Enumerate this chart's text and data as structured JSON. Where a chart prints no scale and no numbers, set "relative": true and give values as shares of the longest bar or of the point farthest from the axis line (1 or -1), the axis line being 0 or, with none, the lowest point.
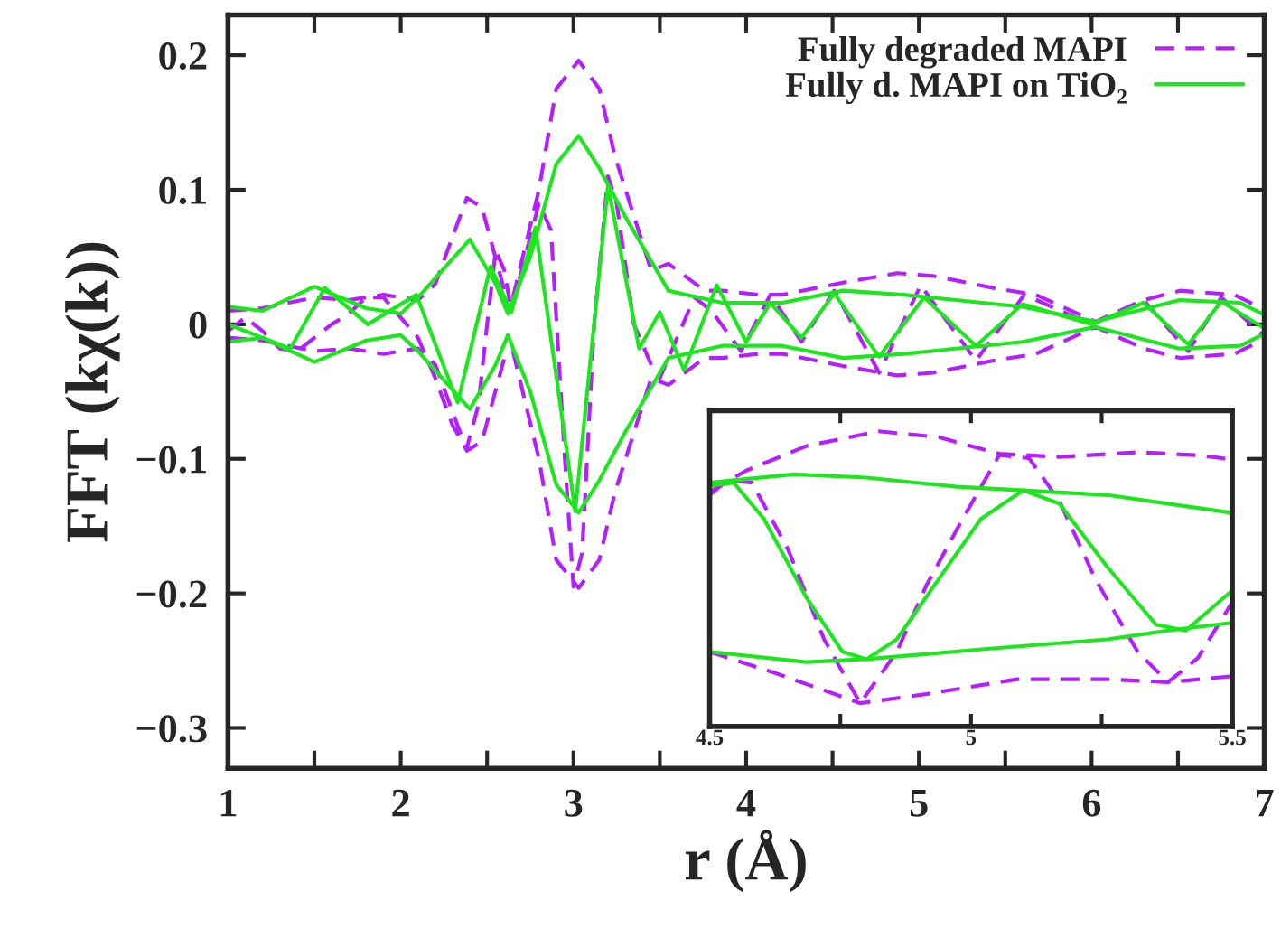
{
  "chart_data": [
    {
      "type": "line",
      "xlabel": "r (Å)",
      "ylabel": "FFT (kχ(k))",
      "xlim": [
        1,
        7
      ],
      "ylim": [
        -0.33,
        0.23
      ],
      "legend": "top right",
      "grid": false,
      "xticks": [
        1,
        {
          "value": 1.5,
          "label": null
        },
        2,
        {
          "value": 2.5,
          "label": null
        },
        3,
        {
          "value": 3.5,
          "label": null
        },
        4,
        {
          "value": 4.5,
          "label": null
        },
        5,
        {
          "value": 5.5,
          "label": null
        },
        6,
        {
          "value": 6.5,
          "label": null
        },
        7
      ],
      "yticks": [
        {
          "value": -0.3,
          "label": "−0.3"
        },
        {
          "value": -0.2,
          "label": "−0.2"
        },
        {
          "value": -0.1,
          "label": "−0.1"
        },
        0,
        0.1,
        0.2
      ],
      "series": [
        {
          "name": "Fully degraded MAPI",
          "color": "#b31fff",
          "line_style": "dashed",
          "x": [
            1.0,
            1.2,
            1.5,
            1.7,
            1.9,
            2.1,
            2.2,
            2.383,
            2.47,
            2.6,
            2.65,
            2.8,
            2.9,
            3.03,
            3.15,
            3.24,
            3.45,
            3.55,
            3.76,
            3.863,
            4.07,
            4.211,
            4.56,
            4.874,
            5.083,
            5.431,
            5.675,
            6.023,
            6.302,
            6.511,
            6.825,
            7.0
          ],
          "values": [
            0.01,
            0.012,
            0.02,
            0.018,
            0.022,
            0.018,
            0.03,
            0.094,
            0.087,
            0.025,
            0.02,
            0.1,
            0.175,
            0.196,
            0.175,
            0.125,
            0.04,
            0.045,
            0.025,
            0.025,
            0.022,
            0.022,
            0.031,
            0.038,
            0.036,
            0.027,
            0.022,
            0.002,
            0.018,
            0.025,
            0.022,
            0.011
          ]
        },
        {
          "color": "#b31fff",
          "line_style": "dashed",
          "x": [
            1.0,
            1.2,
            1.5,
            1.7,
            1.9,
            2.1,
            2.2,
            2.383,
            2.47,
            2.6,
            2.65,
            2.8,
            2.9,
            3.03,
            3.15,
            3.24,
            3.45,
            3.55,
            3.76,
            3.863,
            4.07,
            4.211,
            4.56,
            4.874,
            5.083,
            5.431,
            5.675,
            6.023,
            6.302,
            6.511,
            6.825,
            7.0
          ],
          "values": [
            -0.01,
            -0.012,
            -0.02,
            -0.018,
            -0.022,
            -0.018,
            -0.03,
            -0.094,
            -0.087,
            -0.025,
            -0.02,
            -0.1,
            -0.175,
            -0.196,
            -0.175,
            -0.125,
            -0.04,
            -0.045,
            -0.025,
            -0.025,
            -0.022,
            -0.022,
            -0.031,
            -0.038,
            -0.036,
            -0.027,
            -0.022,
            -0.002,
            -0.018,
            -0.025,
            -0.022,
            -0.011
          ]
        },
        {
          "color": "#b31fff",
          "line_style": "dashed",
          "x": [
            1.0,
            1.1,
            1.2,
            1.3,
            1.4,
            1.5,
            1.6,
            1.7,
            1.8,
            1.9,
            2.0,
            2.1,
            2.2,
            2.3,
            2.38,
            2.45,
            2.5,
            2.55,
            2.6,
            2.64,
            2.7,
            2.8,
            2.87,
            2.95,
            3.0,
            3.05,
            3.12,
            3.2,
            3.25,
            3.35,
            3.45,
            3.5,
            3.6,
            3.7,
            3.8,
            3.97,
            4.14,
            4.32,
            4.51,
            4.77,
            5.01,
            5.33,
            5.61,
            6.0,
            6.3,
            6.56,
            6.75,
            7.0
          ],
          "values": [
            -0.005,
            0.005,
            -0.005,
            -0.018,
            -0.02,
            -0.01,
            0.0,
            0.008,
            0.02,
            0.02,
            0.005,
            -0.01,
            -0.04,
            -0.075,
            -0.093,
            -0.06,
            0.0,
            0.055,
            0.04,
            0.01,
            0.04,
            0.09,
            0.07,
            -0.1,
            -0.195,
            -0.17,
            0.0,
            0.11,
            0.09,
            0.0,
            -0.03,
            -0.04,
            -0.01,
            0.02,
            0.01,
            -0.02,
            0.022,
            -0.013,
            0.025,
            -0.036,
            0.029,
            -0.027,
            0.022,
            0.0,
            0.018,
            -0.02,
            0.02,
            -0.009
          ]
        },
        {
          "name": "Fully d. MAPI on TiO₂",
          "color": "#1ee61e",
          "line_style": "solid",
          "x": [
            1.0,
            1.2,
            1.5,
            1.8,
            2.0,
            2.1,
            2.4,
            2.55,
            2.62,
            2.75,
            2.9,
            3.03,
            3.15,
            3.3,
            3.55,
            3.86,
            4.21,
            4.56,
            4.91,
            5.6,
            6.02,
            6.51,
            6.86,
            7.0
          ],
          "values": [
            0.013,
            0.01,
            0.028,
            0.012,
            0.008,
            0.02,
            0.063,
            0.03,
            0.008,
            0.05,
            0.119,
            0.14,
            0.116,
            0.08,
            0.025,
            0.016,
            0.016,
            0.025,
            0.022,
            0.013,
            0.002,
            0.018,
            0.016,
            0.007
          ]
        },
        {
          "color": "#1ee61e",
          "line_style": "solid",
          "x": [
            1.0,
            1.2,
            1.5,
            1.8,
            2.0,
            2.1,
            2.4,
            2.55,
            2.62,
            2.75,
            2.9,
            3.03,
            3.15,
            3.3,
            3.55,
            3.86,
            4.21,
            4.56,
            4.91,
            5.6,
            6.02,
            6.51,
            6.86,
            7.0
          ],
          "values": [
            -0.013,
            -0.01,
            -0.028,
            -0.012,
            -0.008,
            -0.02,
            -0.063,
            -0.03,
            -0.008,
            -0.05,
            -0.119,
            -0.14,
            -0.116,
            -0.08,
            -0.025,
            -0.016,
            -0.016,
            -0.025,
            -0.022,
            -0.013,
            -0.002,
            -0.018,
            -0.016,
            -0.007
          ]
        },
        {
          "color": "#1ee61e",
          "line_style": "solid",
          "x": [
            1.0,
            1.36,
            1.56,
            1.81,
            2.09,
            2.33,
            2.52,
            2.64,
            2.78,
            3.01,
            3.2,
            3.38,
            3.5,
            3.64,
            3.83,
            4.0,
            4.14,
            4.32,
            4.51,
            4.77,
            5.03,
            5.33,
            5.6,
            6.0,
            6.3,
            6.56,
            6.75,
            7.0
          ],
          "values": [
            0.0,
            -0.018,
            0.027,
            0.0,
            0.022,
            -0.058,
            0.043,
            0.009,
            0.072,
            -0.139,
            0.103,
            -0.018,
            0.009,
            -0.034,
            0.029,
            -0.013,
            0.016,
            -0.01,
            0.023,
            -0.024,
            0.02,
            -0.016,
            0.015,
            0.0,
            0.016,
            -0.015,
            0.017,
            -0.003
          ]
        }
      ]
    },
    {
      "type": "line",
      "xlim": [
        4.5,
        5.5
      ],
      "relative": true,
      "tick_labels": "x",
      "grid": false,
      "xticks": [
        4.5,
        {
          "value": 4.75,
          "label": null
        },
        5,
        {
          "value": 5.25,
          "label": null
        },
        5.5
      ],
      "series": [
        {
          "color": "#b31fff",
          "line_style": "dashed",
          "x": [
            4.5,
            4.569,
            4.685,
            4.823,
            4.938,
            5.054,
            5.169,
            5.319,
            5.434,
            5.498
          ],
          "values": [
            0.795,
            0.866,
            0.95,
            1.0,
            0.98,
            0.924,
            0.913,
            0.929,
            0.919,
            0.905
          ]
        },
        {
          "color": "#b31fff",
          "line_style": "dashed",
          "x": [
            4.5,
            4.627,
            4.788,
            4.915,
            5.088,
            5.261,
            5.377,
            5.498
          ],
          "values": [
            0.253,
            0.18,
            0.079,
            0.11,
            0.16,
            0.16,
            0.15,
            0.17
          ]
        },
        {
          "color": "#b31fff",
          "line_style": "dashed",
          "x": [
            4.5,
            4.535,
            4.581,
            4.65,
            4.719,
            4.788,
            4.858,
            4.915,
            4.984,
            5.054,
            5.111,
            5.169,
            5.238,
            5.319,
            5.377,
            5.434,
            5.498
          ],
          "values": [
            0.784,
            0.836,
            0.826,
            0.6,
            0.295,
            0.079,
            0.253,
            0.479,
            0.703,
            0.919,
            0.909,
            0.764,
            0.499,
            0.253,
            0.15,
            0.232,
            0.416
          ]
        },
        {
          "color": "#1ee61e",
          "line_style": "solid",
          "x": [
            4.5,
            4.661,
            4.8,
            4.973,
            5.1,
            5.261,
            5.498
          ],
          "values": [
            0.826,
            0.854,
            0.843,
            0.812,
            0.8,
            0.784,
            0.724
          ]
        },
        {
          "color": "#1ee61e",
          "line_style": "solid",
          "x": [
            4.5,
            4.685,
            4.8,
            5.031,
            5.261,
            5.377,
            5.498
          ],
          "values": [
            0.253,
            0.218,
            0.228,
            0.263,
            0.295,
            0.325,
            0.351
          ]
        },
        {
          "color": "#1ee61e",
          "line_style": "solid",
          "x": [
            4.5,
            4.546,
            4.604,
            4.685,
            4.754,
            4.8,
            4.858,
            4.938,
            5.019,
            5.1,
            5.169,
            5.261,
            5.354,
            5.411,
            5.498
          ],
          "values": [
            0.816,
            0.826,
            0.703,
            0.437,
            0.253,
            0.228,
            0.295,
            0.499,
            0.703,
            0.8,
            0.755,
            0.54,
            0.345,
            0.325,
            0.458
          ]
        }
      ]
    }
  ]
}
